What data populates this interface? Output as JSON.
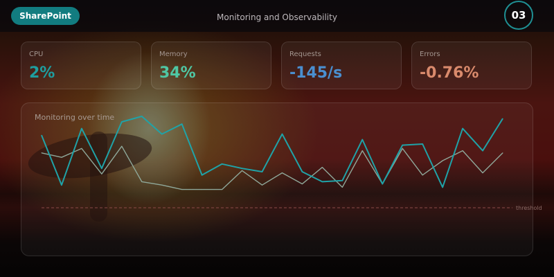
{
  "header": {
    "brand": "SharePoint",
    "title": "Monitoring and Observability",
    "page_number": "03"
  },
  "kpis": [
    {
      "label": "CPU",
      "value": "2%",
      "color": "#1e9ea0"
    },
    {
      "label": "Memory",
      "value": "34%",
      "color": "#4fc7a4"
    },
    {
      "label": "Requests",
      "value": "-145/s",
      "color": "#4a8fd0"
    },
    {
      "label": "Errors",
      "value": "-0.76%",
      "color": "#d98a6c"
    }
  ],
  "chart_data": {
    "type": "line",
    "title": "Monitoring over time",
    "ylim": [
      0,
      100
    ],
    "grid": false,
    "threshold": {
      "label": "threshold",
      "value": 12.5,
      "color": "#8a4a48"
    },
    "series": [
      {
        "color": "#1fa3a8",
        "values": [
          78,
          33,
          84,
          48,
          90,
          95,
          79,
          88,
          42,
          52,
          48,
          45,
          79,
          45,
          36,
          37,
          74,
          34,
          69,
          70,
          31,
          84,
          64,
          93
        ]
      },
      {
        "color": "#8fa89a",
        "values": [
          62,
          58,
          66,
          43,
          68,
          36,
          33,
          29,
          29,
          29,
          46,
          33,
          44,
          34,
          49,
          31,
          64,
          34,
          66,
          42,
          55,
          64,
          44,
          62
        ]
      }
    ]
  }
}
